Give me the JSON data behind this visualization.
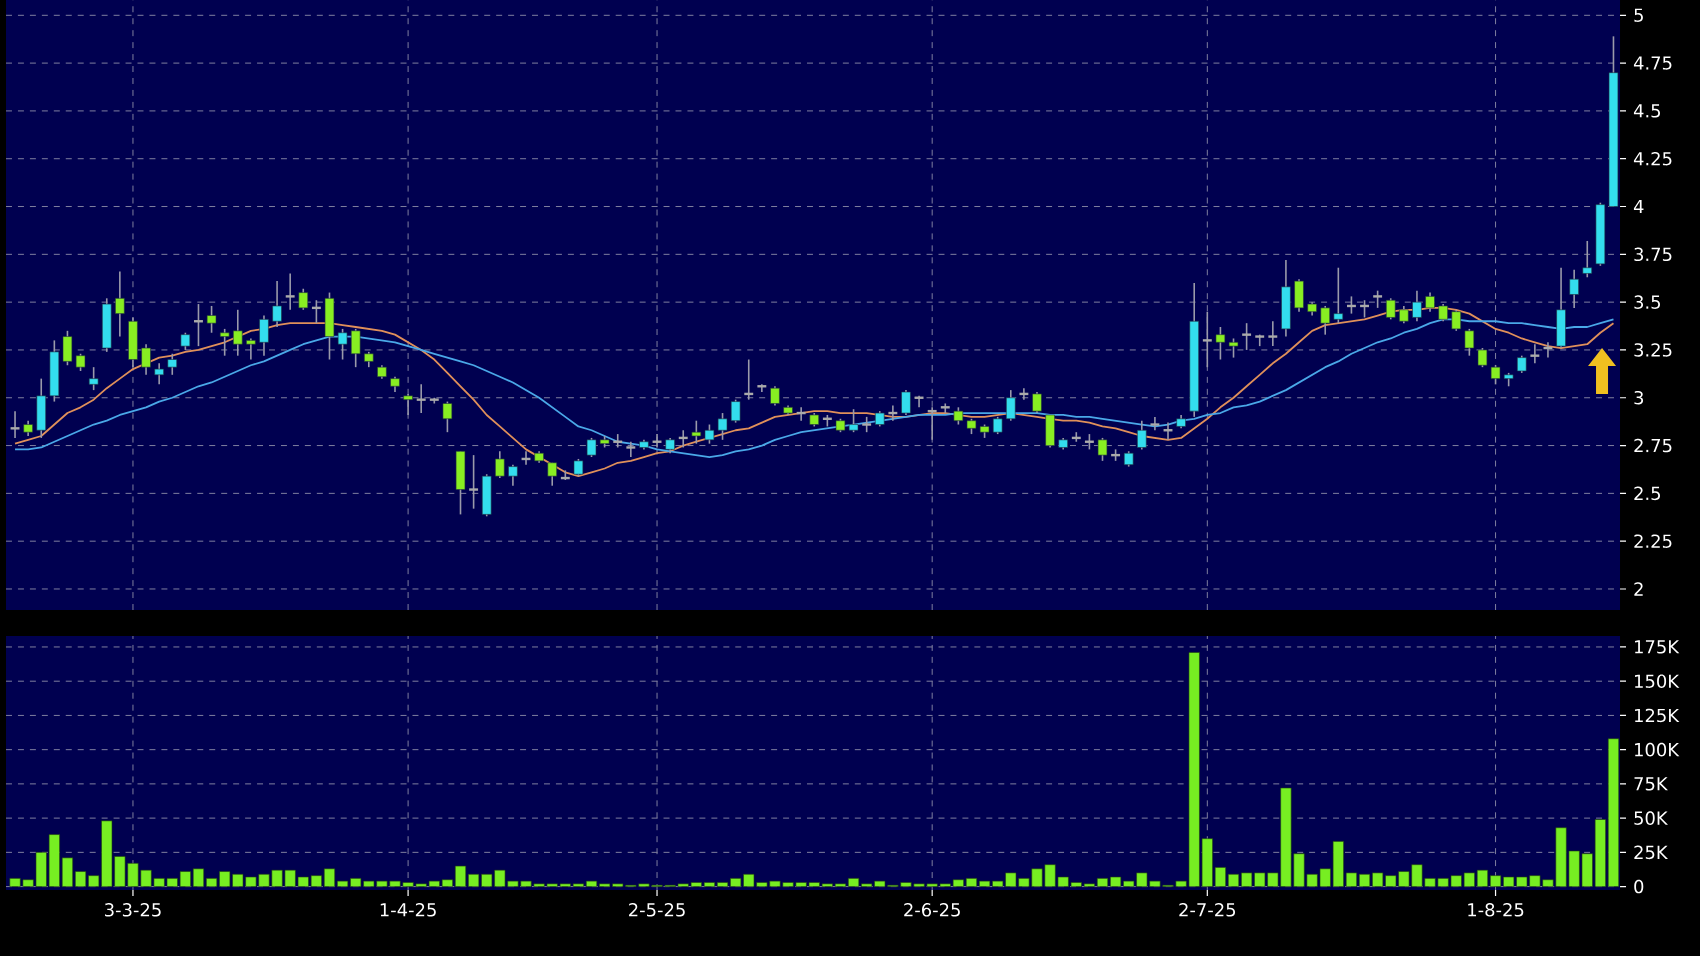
{
  "chart_data": [
    {
      "type": "candlestick",
      "categories": [
        null,
        null,
        null,
        null,
        null,
        null,
        null,
        null,
        null,
        null,
        null,
        null,
        null,
        null,
        null,
        null,
        null,
        null,
        null,
        null,
        null,
        null,
        null,
        null,
        null,
        null,
        null,
        null,
        null,
        null,
        null,
        null,
        null,
        null,
        null,
        null,
        null,
        null,
        null,
        null,
        null,
        null,
        null,
        null,
        null,
        null,
        null,
        null,
        null,
        null,
        null,
        null,
        null,
        null,
        null,
        null,
        null,
        null,
        null,
        null,
        null,
        null,
        null,
        null,
        null,
        null,
        null,
        null,
        null,
        null,
        null,
        null,
        null,
        null,
        null,
        null,
        null,
        null,
        null,
        null,
        null,
        null,
        null,
        null,
        null,
        null,
        null,
        null,
        null,
        null,
        null,
        null,
        null,
        null,
        null,
        null,
        null,
        null,
        null,
        null,
        null,
        null,
        null,
        null,
        null,
        null,
        null,
        null,
        null,
        null,
        null,
        null,
        null,
        null,
        null,
        null,
        null,
        null,
        null,
        null,
        null,
        null,
        null
      ],
      "ohlc": [
        [
          2.84,
          2.93,
          2.79,
          2.84
        ],
        [
          2.86,
          2.88,
          2.8,
          2.82
        ],
        [
          2.83,
          3.1,
          2.79,
          3.01
        ],
        [
          3.01,
          3.3,
          2.98,
          3.24
        ],
        [
          3.32,
          3.35,
          3.17,
          3.19
        ],
        [
          3.22,
          3.23,
          3.14,
          3.16
        ],
        [
          3.07,
          3.16,
          3.04,
          3.1
        ],
        [
          3.26,
          3.52,
          3.24,
          3.49
        ],
        [
          3.52,
          3.66,
          3.32,
          3.44
        ],
        [
          3.4,
          3.42,
          3.16,
          3.2
        ],
        [
          3.26,
          3.28,
          3.12,
          3.16
        ],
        [
          3.12,
          3.18,
          3.07,
          3.15
        ],
        [
          3.16,
          3.23,
          3.12,
          3.2
        ],
        [
          3.27,
          3.34,
          3.25,
          3.33
        ],
        [
          3.4,
          3.49,
          3.27,
          3.4
        ],
        [
          3.43,
          3.48,
          3.34,
          3.39
        ],
        [
          3.34,
          3.36,
          3.22,
          3.32
        ],
        [
          3.35,
          3.46,
          3.22,
          3.28
        ],
        [
          3.3,
          3.31,
          3.2,
          3.28
        ],
        [
          3.29,
          3.43,
          3.22,
          3.41
        ],
        [
          3.4,
          3.61,
          3.37,
          3.48
        ],
        [
          3.53,
          3.65,
          3.46,
          3.53
        ],
        [
          3.55,
          3.57,
          3.46,
          3.47
        ],
        [
          3.47,
          3.51,
          3.39,
          3.47
        ],
        [
          3.52,
          3.55,
          3.2,
          3.32
        ],
        [
          3.28,
          3.36,
          3.2,
          3.34
        ],
        [
          3.35,
          3.36,
          3.16,
          3.23
        ],
        [
          3.23,
          3.24,
          3.16,
          3.19
        ],
        [
          3.16,
          3.17,
          3.1,
          3.11
        ],
        [
          3.1,
          3.11,
          3.03,
          3.06
        ],
        [
          3.01,
          3.02,
          2.91,
          2.99
        ],
        [
          2.99,
          3.07,
          2.92,
          2.99
        ],
        [
          2.99,
          3.0,
          2.97,
          2.99
        ],
        [
          2.97,
          2.98,
          2.82,
          2.89
        ],
        [
          2.72,
          2.72,
          2.39,
          2.52
        ],
        [
          2.52,
          2.7,
          2.42,
          2.52
        ],
        [
          2.39,
          2.6,
          2.38,
          2.59
        ],
        [
          2.68,
          2.72,
          2.58,
          2.59
        ],
        [
          2.59,
          2.65,
          2.54,
          2.64
        ],
        [
          2.68,
          2.72,
          2.65,
          2.68
        ],
        [
          2.71,
          2.72,
          2.66,
          2.67
        ],
        [
          2.66,
          2.66,
          2.54,
          2.59
        ],
        [
          2.58,
          2.62,
          2.57,
          2.58
        ],
        [
          2.6,
          2.68,
          2.59,
          2.67
        ],
        [
          2.7,
          2.79,
          2.69,
          2.78
        ],
        [
          2.78,
          2.8,
          2.74,
          2.76
        ],
        [
          2.77,
          2.81,
          2.74,
          2.77
        ],
        [
          2.74,
          2.77,
          2.69,
          2.74
        ],
        [
          2.74,
          2.78,
          2.73,
          2.77
        ],
        [
          2.77,
          2.81,
          2.74,
          2.77
        ],
        [
          2.73,
          2.79,
          2.71,
          2.78
        ],
        [
          2.79,
          2.83,
          2.74,
          2.79
        ],
        [
          2.82,
          2.88,
          2.76,
          2.8
        ],
        [
          2.78,
          2.86,
          2.76,
          2.83
        ],
        [
          2.83,
          2.92,
          2.78,
          2.89
        ],
        [
          2.88,
          2.99,
          2.87,
          2.98
        ],
        [
          3.02,
          3.2,
          2.99,
          3.02
        ],
        [
          3.06,
          3.07,
          3.03,
          3.06
        ],
        [
          3.05,
          3.06,
          2.96,
          2.97
        ],
        [
          2.95,
          2.96,
          2.91,
          2.92
        ],
        [
          2.92,
          2.95,
          2.88,
          2.92
        ],
        [
          2.91,
          2.92,
          2.85,
          2.86
        ],
        [
          2.89,
          2.91,
          2.85,
          2.89
        ],
        [
          2.88,
          2.89,
          2.82,
          2.83
        ],
        [
          2.83,
          2.94,
          2.82,
          2.86
        ],
        [
          2.86,
          2.9,
          2.82,
          2.86
        ],
        [
          2.86,
          2.93,
          2.85,
          2.92
        ],
        [
          2.92,
          2.96,
          2.88,
          2.92
        ],
        [
          2.92,
          3.04,
          2.91,
          3.03
        ],
        [
          3.0,
          3.01,
          2.95,
          3.0
        ],
        [
          2.93,
          2.95,
          2.78,
          2.93
        ],
        [
          2.95,
          2.97,
          2.92,
          2.95
        ],
        [
          2.93,
          2.95,
          2.86,
          2.88
        ],
        [
          2.88,
          2.89,
          2.81,
          2.84
        ],
        [
          2.85,
          2.86,
          2.79,
          2.82
        ],
        [
          2.82,
          2.9,
          2.81,
          2.89
        ],
        [
          2.89,
          3.04,
          2.88,
          3.0
        ],
        [
          3.02,
          3.05,
          2.99,
          3.02
        ],
        [
          3.02,
          3.03,
          2.92,
          2.93
        ],
        [
          2.91,
          2.91,
          2.74,
          2.75
        ],
        [
          2.74,
          2.79,
          2.73,
          2.78
        ],
        [
          2.79,
          2.82,
          2.77,
          2.79
        ],
        [
          2.77,
          2.81,
          2.73,
          2.77
        ],
        [
          2.78,
          2.79,
          2.67,
          2.7
        ],
        [
          2.7,
          2.73,
          2.67,
          2.7
        ],
        [
          2.65,
          2.72,
          2.64,
          2.71
        ],
        [
          2.74,
          2.88,
          2.73,
          2.83
        ],
        [
          2.86,
          2.9,
          2.83,
          2.86
        ],
        [
          2.83,
          2.87,
          2.78,
          2.83
        ],
        [
          2.85,
          2.91,
          2.84,
          2.89
        ],
        [
          2.93,
          3.6,
          2.9,
          3.4
        ],
        [
          3.3,
          3.45,
          3.16,
          3.3
        ],
        [
          3.33,
          3.37,
          3.2,
          3.29
        ],
        [
          3.29,
          3.31,
          3.21,
          3.27
        ],
        [
          3.33,
          3.39,
          3.25,
          3.33
        ],
        [
          3.32,
          3.33,
          3.27,
          3.32
        ],
        [
          3.32,
          3.4,
          3.27,
          3.32
        ],
        [
          3.36,
          3.72,
          3.32,
          3.58
        ],
        [
          3.61,
          3.62,
          3.45,
          3.47
        ],
        [
          3.49,
          3.5,
          3.43,
          3.45
        ],
        [
          3.47,
          3.48,
          3.33,
          3.39
        ],
        [
          3.41,
          3.68,
          3.39,
          3.44
        ],
        [
          3.48,
          3.53,
          3.44,
          3.48
        ],
        [
          3.48,
          3.51,
          3.42,
          3.48
        ],
        [
          3.53,
          3.56,
          3.47,
          3.53
        ],
        [
          3.51,
          3.52,
          3.41,
          3.42
        ],
        [
          3.46,
          3.48,
          3.39,
          3.4
        ],
        [
          3.42,
          3.56,
          3.4,
          3.5
        ],
        [
          3.53,
          3.55,
          3.45,
          3.47
        ],
        [
          3.48,
          3.49,
          3.4,
          3.41
        ],
        [
          3.45,
          3.46,
          3.35,
          3.36
        ],
        [
          3.35,
          3.36,
          3.22,
          3.26
        ],
        [
          3.25,
          3.26,
          3.16,
          3.17
        ],
        [
          3.16,
          3.17,
          3.07,
          3.1
        ],
        [
          3.1,
          3.13,
          3.06,
          3.12
        ],
        [
          3.14,
          3.22,
          3.13,
          3.21
        ],
        [
          3.22,
          3.28,
          3.18,
          3.22
        ],
        [
          3.26,
          3.29,
          3.21,
          3.26
        ],
        [
          3.27,
          3.68,
          3.26,
          3.46
        ],
        [
          3.54,
          3.67,
          3.47,
          3.62
        ],
        [
          3.65,
          3.82,
          3.63,
          3.68
        ],
        [
          3.7,
          4.02,
          3.69,
          4.01
        ],
        [
          4.0,
          4.89,
          4.0,
          4.7
        ]
      ],
      "colors": [
        "#aaaaaa",
        "#88ee22",
        "#33ddee",
        "#33ddee",
        "#88ee22",
        "#88ee22",
        "#33ddee",
        "#33ddee",
        "#88ee22",
        "#88ee22",
        "#88ee22",
        "#33ddee",
        "#33ddee",
        "#33ddee",
        "#aaaaaa",
        "#88ee22",
        "#88ee22",
        "#88ee22",
        "#88ee22",
        "#33ddee",
        "#33ddee",
        "#aaaaaa",
        "#88ee22",
        "#aaaaaa",
        "#88ee22",
        "#33ddee",
        "#88ee22",
        "#88ee22",
        "#88ee22",
        "#88ee22",
        "#88ee22",
        "#aaaaaa",
        "#aaaaaa",
        "#88ee22",
        "#88ee22",
        "#aaaaaa",
        "#33ddee",
        "#88ee22",
        "#33ddee",
        "#aaaaaa",
        "#88ee22",
        "#88ee22",
        "#aaaaaa",
        "#33ddee",
        "#33ddee",
        "#88ee22",
        "#aaaaaa",
        "#aaaaaa",
        "#33ddee",
        "#aaaaaa",
        "#33ddee",
        "#aaaaaa",
        "#88ee22",
        "#33ddee",
        "#33ddee",
        "#33ddee",
        "#aaaaaa",
        "#aaaaaa",
        "#88ee22",
        "#88ee22",
        "#aaaaaa",
        "#88ee22",
        "#aaaaaa",
        "#88ee22",
        "#33ddee",
        "#aaaaaa",
        "#33ddee",
        "#aaaaaa",
        "#33ddee",
        "#aaaaaa",
        "#aaaaaa",
        "#aaaaaa",
        "#88ee22",
        "#88ee22",
        "#88ee22",
        "#33ddee",
        "#33ddee",
        "#aaaaaa",
        "#88ee22",
        "#88ee22",
        "#33ddee",
        "#aaaaaa",
        "#aaaaaa",
        "#88ee22",
        "#aaaaaa",
        "#33ddee",
        "#33ddee",
        "#aaaaaa",
        "#aaaaaa",
        "#33ddee",
        "#33ddee",
        "#aaaaaa",
        "#88ee22",
        "#88ee22",
        "#aaaaaa",
        "#aaaaaa",
        "#aaaaaa",
        "#33ddee",
        "#88ee22",
        "#88ee22",
        "#88ee22",
        "#33ddee",
        "#aaaaaa",
        "#aaaaaa",
        "#aaaaaa",
        "#88ee22",
        "#88ee22",
        "#33ddee",
        "#88ee22",
        "#88ee22",
        "#88ee22",
        "#88ee22",
        "#88ee22",
        "#88ee22",
        "#33ddee",
        "#33ddee",
        "#aaaaaa",
        "#aaaaaa",
        "#33ddee",
        "#33ddee",
        "#33ddee",
        "#33ddee",
        "#33ddee"
      ],
      "series": [
        {
          "type": "line",
          "color": "#e0905a",
          "values": [
            2.76,
            2.78,
            2.8,
            2.86,
            2.92,
            2.95,
            2.99,
            3.05,
            3.1,
            3.15,
            3.18,
            3.21,
            3.22,
            3.24,
            3.25,
            3.27,
            3.29,
            3.32,
            3.35,
            3.36,
            3.38,
            3.39,
            3.39,
            3.39,
            3.39,
            3.38,
            3.37,
            3.36,
            3.35,
            3.33,
            3.29,
            3.25,
            3.2,
            3.13,
            3.06,
            2.99,
            2.91,
            2.85,
            2.79,
            2.73,
            2.69,
            2.65,
            2.61,
            2.59,
            2.61,
            2.63,
            2.66,
            2.67,
            2.69,
            2.71,
            2.72,
            2.75,
            2.77,
            2.79,
            2.81,
            2.83,
            2.84,
            2.87,
            2.9,
            2.91,
            2.92,
            2.93,
            2.93,
            2.92,
            2.92,
            2.92,
            2.91,
            2.9,
            2.9,
            2.91,
            2.92,
            2.92,
            2.91,
            2.9,
            2.9,
            2.91,
            2.92,
            2.91,
            2.9,
            2.89,
            2.88,
            2.88,
            2.87,
            2.85,
            2.84,
            2.82,
            2.8,
            2.79,
            2.78,
            2.79,
            2.84,
            2.89,
            2.95,
            3.0,
            3.06,
            3.12,
            3.18,
            3.23,
            3.29,
            3.35,
            3.38,
            3.39,
            3.4,
            3.41,
            3.43,
            3.45,
            3.46,
            3.46,
            3.47,
            3.47,
            3.46,
            3.44,
            3.4,
            3.36,
            3.34,
            3.31,
            3.29,
            3.27,
            3.26,
            3.27,
            3.28,
            3.34,
            3.39
          ]
        },
        {
          "type": "line",
          "color": "#4aa8e8",
          "values": [
            2.73,
            2.73,
            2.74,
            2.77,
            2.8,
            2.83,
            2.86,
            2.88,
            2.91,
            2.93,
            2.95,
            2.98,
            3.0,
            3.03,
            3.06,
            3.08,
            3.11,
            3.14,
            3.17,
            3.19,
            3.22,
            3.25,
            3.28,
            3.3,
            3.32,
            3.32,
            3.32,
            3.31,
            3.3,
            3.29,
            3.27,
            3.25,
            3.23,
            3.21,
            3.19,
            3.17,
            3.14,
            3.11,
            3.08,
            3.04,
            3.0,
            2.95,
            2.9,
            2.85,
            2.83,
            2.8,
            2.77,
            2.76,
            2.75,
            2.73,
            2.72,
            2.71,
            2.7,
            2.69,
            2.7,
            2.72,
            2.73,
            2.75,
            2.78,
            2.8,
            2.82,
            2.83,
            2.84,
            2.85,
            2.86,
            2.87,
            2.88,
            2.89,
            2.9,
            2.91,
            2.91,
            2.91,
            2.92,
            2.92,
            2.92,
            2.92,
            2.92,
            2.92,
            2.92,
            2.91,
            2.91,
            2.9,
            2.9,
            2.89,
            2.88,
            2.87,
            2.86,
            2.85,
            2.86,
            2.88,
            2.89,
            2.91,
            2.92,
            2.95,
            2.96,
            2.98,
            3.01,
            3.04,
            3.08,
            3.12,
            3.16,
            3.19,
            3.23,
            3.26,
            3.29,
            3.31,
            3.34,
            3.36,
            3.39,
            3.41,
            3.41,
            3.4,
            3.4,
            3.4,
            3.39,
            3.39,
            3.38,
            3.37,
            3.36,
            3.37,
            3.37,
            3.39,
            3.41
          ]
        }
      ],
      "ylim": [
        1.89,
        5.08
      ],
      "yticks": [
        2,
        2.25,
        2.5,
        2.75,
        3,
        3.25,
        3.5,
        3.75,
        4,
        4.25,
        4.5,
        4.75,
        5
      ],
      "grid": true,
      "tick_labels": "y"
    },
    {
      "type": "bar",
      "categories": [
        null,
        null,
        null,
        null,
        null,
        null,
        null,
        null,
        null,
        "3-3-25",
        null,
        null,
        null,
        null,
        null,
        null,
        null,
        null,
        null,
        null,
        null,
        null,
        null,
        null,
        null,
        null,
        null,
        null,
        null,
        null,
        "1-4-25",
        null,
        null,
        null,
        null,
        null,
        null,
        null,
        null,
        null,
        null,
        null,
        null,
        null,
        null,
        null,
        null,
        null,
        null,
        "2-5-25",
        null,
        null,
        null,
        null,
        null,
        null,
        null,
        null,
        null,
        null,
        null,
        null,
        null,
        null,
        null,
        null,
        null,
        null,
        null,
        null,
        "2-6-25",
        null,
        null,
        null,
        null,
        null,
        null,
        null,
        null,
        null,
        null,
        null,
        null,
        null,
        null,
        null,
        null,
        null,
        null,
        null,
        null,
        "2-7-25",
        null,
        null,
        null,
        null,
        null,
        null,
        null,
        null,
        null,
        null,
        null,
        null,
        null,
        null,
        null,
        null,
        null,
        null,
        null,
        null,
        null,
        "1-8-25",
        null,
        null,
        null,
        null,
        null,
        null,
        null,
        null,
        null
      ],
      "values": [
        6000,
        5000,
        25000,
        38000,
        21000,
        11000,
        8000,
        48000,
        22000,
        17000,
        12000,
        6000,
        6000,
        11000,
        13000,
        6000,
        11000,
        9000,
        7000,
        9000,
        12000,
        12000,
        7000,
        8000,
        13000,
        4000,
        6000,
        4000,
        4000,
        4000,
        3000,
        2000,
        4000,
        5000,
        15000,
        9000,
        9000,
        12000,
        4000,
        4000,
        2000,
        2000,
        2000,
        2000,
        4000,
        2000,
        2000,
        1000,
        2000,
        1000,
        1000,
        2000,
        3000,
        3000,
        3000,
        6000,
        9000,
        3000,
        4000,
        3000,
        3000,
        3000,
        2000,
        2000,
        6000,
        2000,
        4000,
        1000,
        3000,
        2000,
        2000,
        2000,
        5000,
        6000,
        4000,
        4000,
        10000,
        6000,
        13000,
        16000,
        7000,
        3000,
        2000,
        6000,
        7000,
        4000,
        10000,
        4000,
        1000,
        4000,
        171000,
        35000,
        14000,
        9000,
        10000,
        10000,
        10000,
        72000,
        24000,
        9000,
        13000,
        33000,
        10000,
        9000,
        10000,
        8000,
        11000,
        16000,
        6000,
        6000,
        8000,
        10000,
        12000,
        8000,
        7000,
        7000,
        8000,
        5000,
        43000,
        26000,
        24000,
        49000,
        108000
      ],
      "color": "#77ee22",
      "ylim": [
        -2500,
        183000
      ],
      "yticks": [
        0,
        {
          "value": 25000,
          "label": "25K"
        },
        {
          "value": 50000,
          "label": "50K"
        },
        {
          "value": 75000,
          "label": "75K"
        },
        {
          "value": 100000,
          "label": "100K"
        },
        {
          "value": 125000,
          "label": "125K"
        },
        {
          "value": 150000,
          "label": "150K"
        },
        {
          "value": 175000,
          "label": "175K"
        }
      ],
      "grid": true
    }
  ]
}
